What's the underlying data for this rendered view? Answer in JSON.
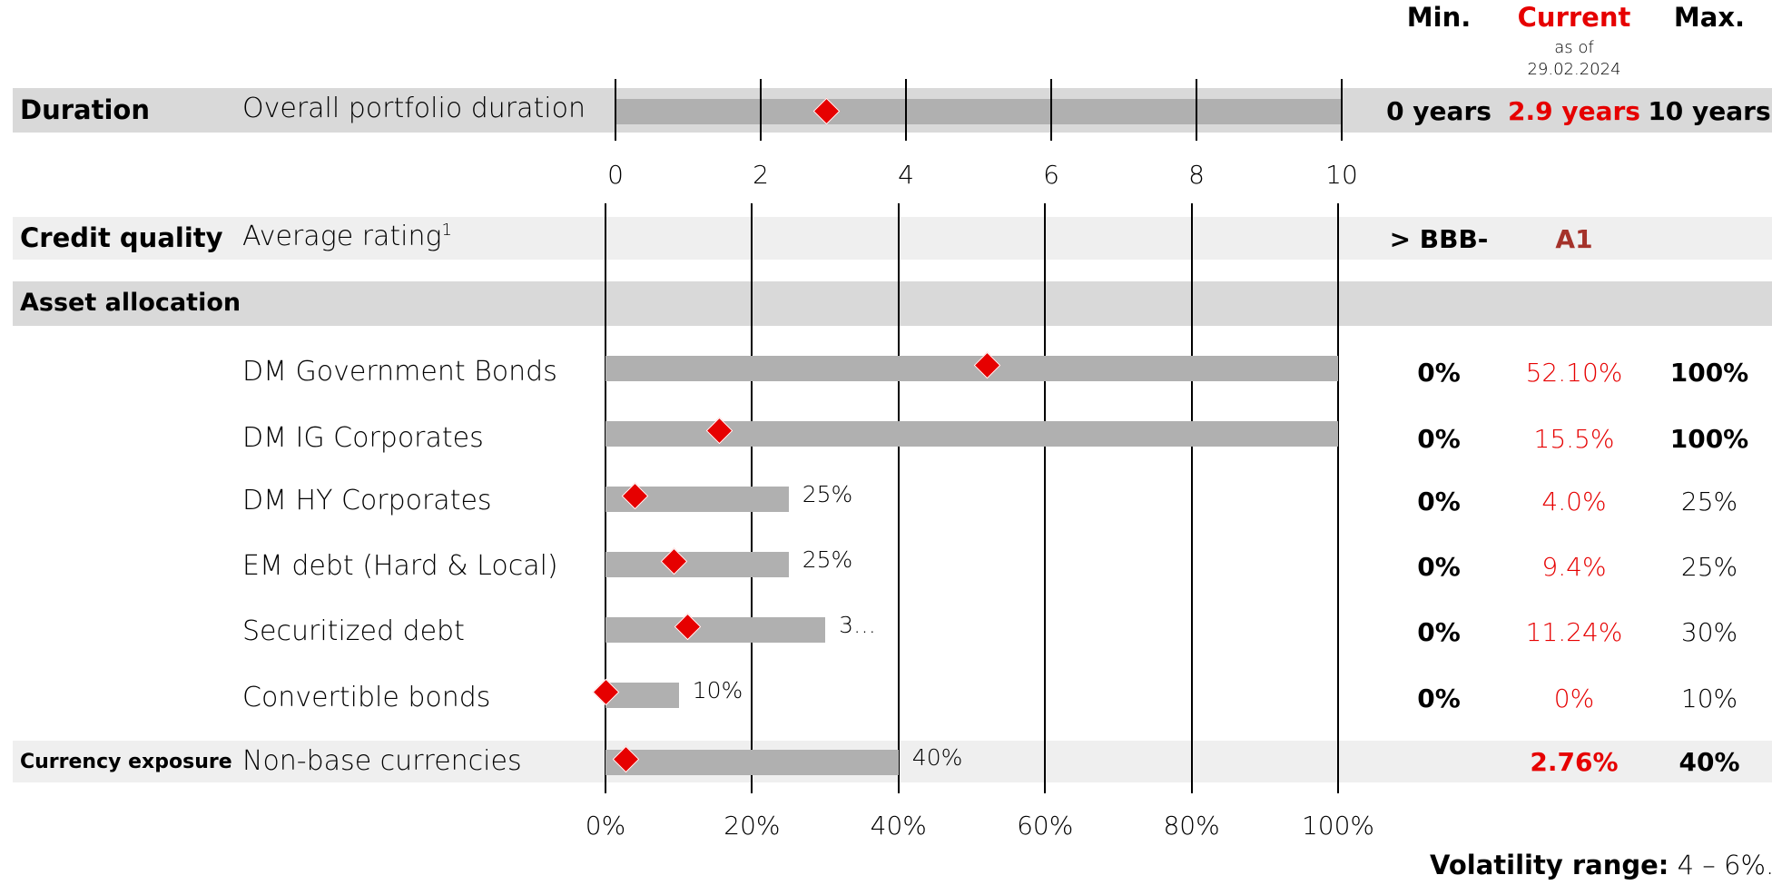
{
  "header": {
    "min_label": "Min.",
    "current_label": "Current",
    "as_of_label": "as of",
    "as_of_date": "29.02.2024",
    "max_label": "Max."
  },
  "duration": {
    "section": "Duration",
    "label": "Overall portfolio duration",
    "min": "0 years",
    "current": "2.9 years",
    "max": "10 years"
  },
  "credit": {
    "section": "Credit quality",
    "label": "Average rating",
    "footnote": "1",
    "min": "> BBB-",
    "current": "A1"
  },
  "asset_allocation": {
    "section": "Asset allocation",
    "rows": [
      {
        "label": "DM Government Bonds",
        "min": "0%",
        "current": "52.10%",
        "max": "100%",
        "bar_label": ""
      },
      {
        "label": "DM IG Corporates",
        "min": "0%",
        "current": "15.5%",
        "max": "100%",
        "bar_label": ""
      },
      {
        "label": "DM HY Corporates",
        "min": "0%",
        "current": "4.0%",
        "max": "25%",
        "bar_label": "25%"
      },
      {
        "label": "EM debt (Hard & Local)",
        "min": "0%",
        "current": "9.4%",
        "max": "25%",
        "bar_label": "25%"
      },
      {
        "label": "Securitized debt",
        "min": "0%",
        "current": "11.24%",
        "max": "30%",
        "bar_label": "3…"
      },
      {
        "label": "Convertible bonds",
        "min": "0%",
        "current": "0%",
        "max": "10%",
        "bar_label": "10%"
      }
    ]
  },
  "currency": {
    "section": "Currency exposure",
    "label": "Non-base currencies",
    "current": "2.76%",
    "max": "40%",
    "bar_label": "40%"
  },
  "footer": {
    "volatility_label": "Volatility range:",
    "volatility_value": "4 – 6%."
  },
  "colors": {
    "marker": "#e60000",
    "bar": "#b0b0b0",
    "band_dark": "#d9d9d9",
    "band_light": "#efefef",
    "credit_current": "#a5322a"
  },
  "chart_data": [
    {
      "type": "bar",
      "title": "",
      "xlabel": "",
      "xlim": [
        0,
        10
      ],
      "xticks": [
        "0",
        "2",
        "4",
        "6",
        "8",
        "10"
      ],
      "categories": [
        "Overall portfolio duration"
      ],
      "series": [
        {
          "name": "Min",
          "values": [
            0
          ]
        },
        {
          "name": "Current",
          "values": [
            2.9
          ]
        },
        {
          "name": "Max",
          "values": [
            10
          ]
        }
      ]
    },
    {
      "type": "bar",
      "title": "",
      "xlabel": "",
      "xlim": [
        0,
        100
      ],
      "xticks": [
        "0%",
        "20%",
        "40%",
        "60%",
        "80%",
        "100%"
      ],
      "grid": true,
      "categories": [
        "DM Government Bonds",
        "DM IG Corporates",
        "DM HY Corporates",
        "EM debt (Hard & Local)",
        "Securitized debt",
        "Convertible bonds",
        "Non-base currencies"
      ],
      "series": [
        {
          "name": "Min",
          "values": [
            0,
            0,
            0,
            0,
            0,
            0,
            0
          ]
        },
        {
          "name": "Current",
          "values": [
            52.1,
            15.5,
            4.0,
            9.4,
            11.24,
            0,
            2.76
          ]
        },
        {
          "name": "Max",
          "values": [
            100,
            100,
            25,
            25,
            30,
            10,
            40
          ]
        }
      ]
    }
  ]
}
